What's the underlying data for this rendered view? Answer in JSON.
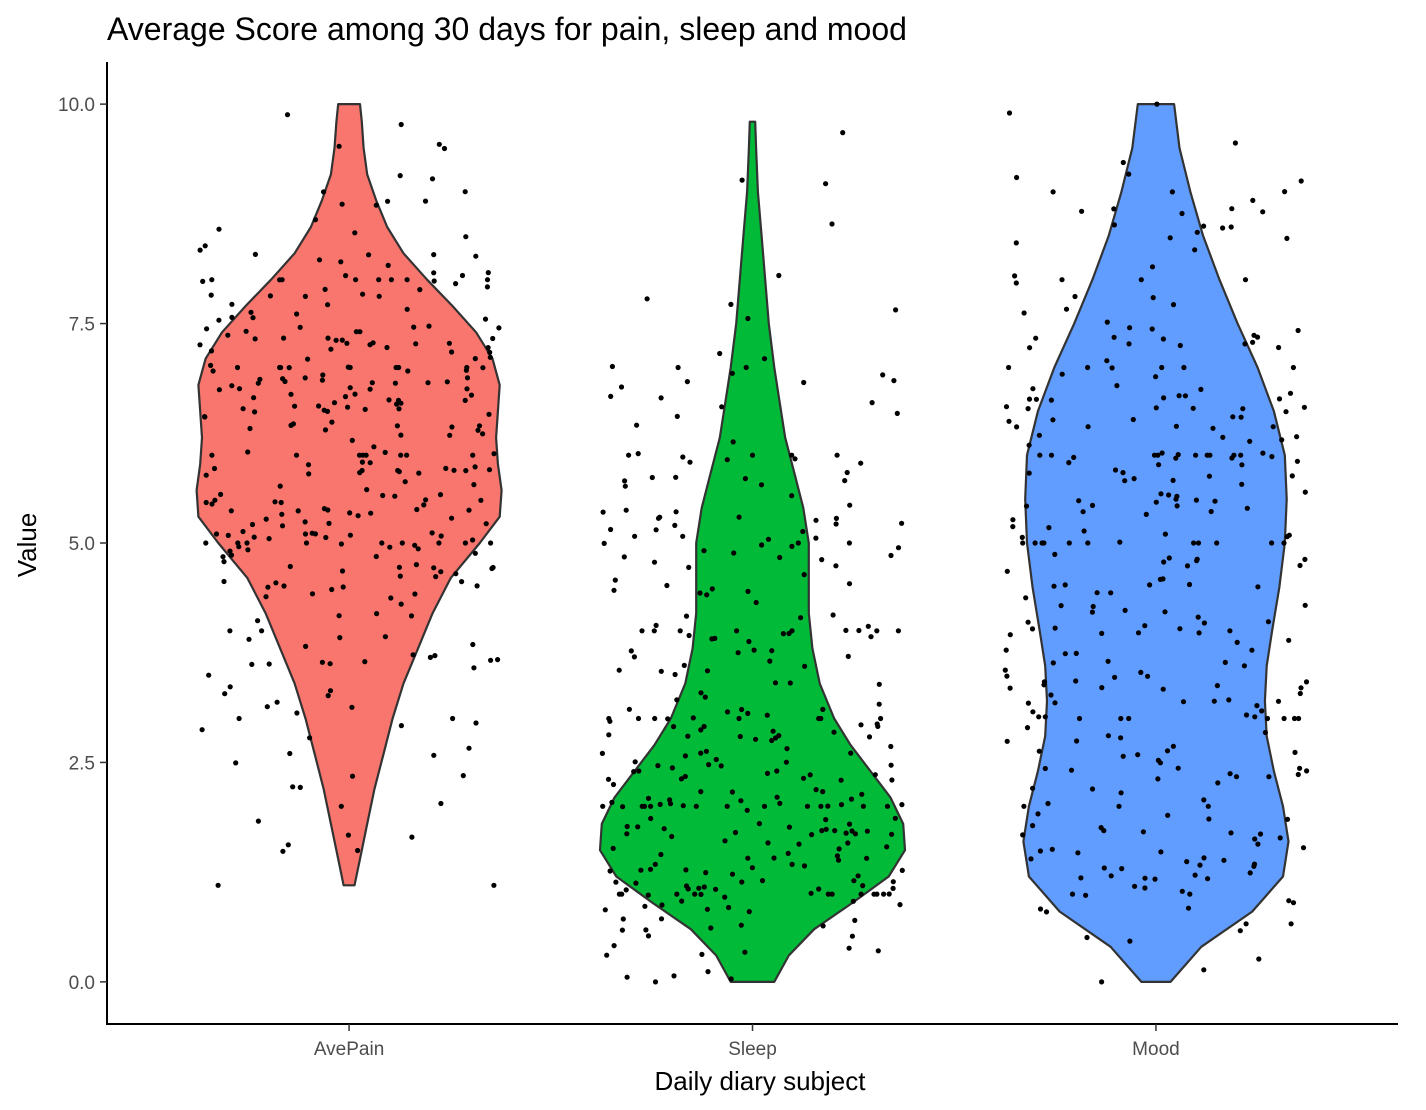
{
  "chart_data": {
    "type": "violin",
    "title": "Average Score among 30 days for pain, sleep and mood",
    "xlabel": "Daily diary subject",
    "ylabel": "Value",
    "categories": [
      "AvePain",
      "Sleep",
      "Mood"
    ],
    "ylim": [
      -0.48,
      10.48
    ],
    "yticks": [
      0.0,
      2.5,
      5.0,
      7.5,
      10.0
    ],
    "ytick_labels": [
      "0.0",
      "2.5",
      "5.0",
      "7.5",
      "10.0"
    ],
    "grid": false,
    "legend": "none",
    "jitter_points": true,
    "point_color": "#000000",
    "series": [
      {
        "category": "AvePain",
        "fill": "#F8766D",
        "min": 1.1,
        "max": 10.0,
        "density_profile": [
          [
            1.1,
            0.03
          ],
          [
            1.4,
            0.06
          ],
          [
            1.8,
            0.1
          ],
          [
            2.2,
            0.14
          ],
          [
            2.6,
            0.19
          ],
          [
            3.0,
            0.24
          ],
          [
            3.4,
            0.3
          ],
          [
            3.8,
            0.38
          ],
          [
            4.2,
            0.46
          ],
          [
            4.6,
            0.56
          ],
          [
            5.0,
            0.72
          ],
          [
            5.3,
            0.83
          ],
          [
            5.6,
            0.84
          ],
          [
            5.9,
            0.82
          ],
          [
            6.2,
            0.81
          ],
          [
            6.5,
            0.82
          ],
          [
            6.8,
            0.83
          ],
          [
            7.1,
            0.79
          ],
          [
            7.4,
            0.7
          ],
          [
            7.7,
            0.57
          ],
          [
            8.0,
            0.43
          ],
          [
            8.3,
            0.3
          ],
          [
            8.6,
            0.21
          ],
          [
            8.9,
            0.15
          ],
          [
            9.2,
            0.1
          ],
          [
            9.5,
            0.08
          ],
          [
            9.8,
            0.07
          ],
          [
            10.0,
            0.06
          ]
        ]
      },
      {
        "category": "Sleep",
        "fill": "#00BA38",
        "min": 0.0,
        "max": 9.8,
        "density_profile": [
          [
            0.0,
            0.12
          ],
          [
            0.3,
            0.2
          ],
          [
            0.6,
            0.34
          ],
          [
            0.9,
            0.55
          ],
          [
            1.2,
            0.75
          ],
          [
            1.5,
            0.84
          ],
          [
            1.8,
            0.83
          ],
          [
            2.1,
            0.76
          ],
          [
            2.4,
            0.65
          ],
          [
            2.7,
            0.54
          ],
          [
            3.0,
            0.45
          ],
          [
            3.4,
            0.37
          ],
          [
            3.8,
            0.33
          ],
          [
            4.2,
            0.31
          ],
          [
            4.6,
            0.31
          ],
          [
            5.0,
            0.31
          ],
          [
            5.4,
            0.28
          ],
          [
            5.8,
            0.23
          ],
          [
            6.2,
            0.18
          ],
          [
            6.6,
            0.15
          ],
          [
            7.0,
            0.12
          ],
          [
            7.5,
            0.09
          ],
          [
            8.0,
            0.07
          ],
          [
            8.5,
            0.05
          ],
          [
            9.0,
            0.03
          ],
          [
            9.5,
            0.02
          ],
          [
            9.8,
            0.015
          ]
        ]
      },
      {
        "category": "Mood",
        "fill": "#619CFF",
        "min": 0.0,
        "max": 10.0,
        "density_profile": [
          [
            0.0,
            0.08
          ],
          [
            0.4,
            0.25
          ],
          [
            0.8,
            0.53
          ],
          [
            1.2,
            0.7
          ],
          [
            1.6,
            0.73
          ],
          [
            2.0,
            0.7
          ],
          [
            2.4,
            0.65
          ],
          [
            2.8,
            0.61
          ],
          [
            3.2,
            0.6
          ],
          [
            3.6,
            0.61
          ],
          [
            4.0,
            0.64
          ],
          [
            4.5,
            0.68
          ],
          [
            5.0,
            0.71
          ],
          [
            5.5,
            0.72
          ],
          [
            6.0,
            0.71
          ],
          [
            6.5,
            0.65
          ],
          [
            7.0,
            0.56
          ],
          [
            7.5,
            0.45
          ],
          [
            8.0,
            0.35
          ],
          [
            8.5,
            0.26
          ],
          [
            9.0,
            0.19
          ],
          [
            9.5,
            0.13
          ],
          [
            10.0,
            0.1
          ]
        ]
      }
    ]
  }
}
